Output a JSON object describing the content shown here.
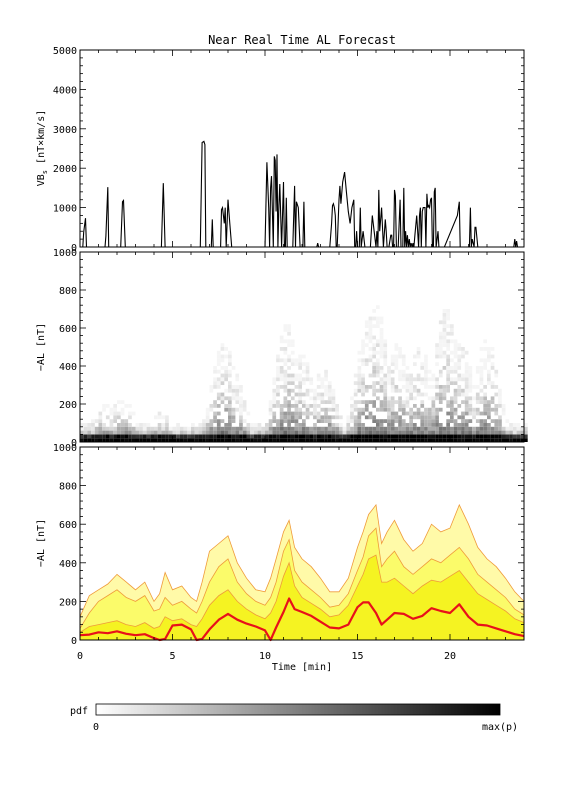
{
  "title": "Near Real Time AL Forecast",
  "xlabel": "Time [min]",
  "colorbar": {
    "label": "pdf",
    "min_label": "0",
    "max_label": "max(p)"
  },
  "chart_data": [
    {
      "type": "line",
      "panel": "solar-wind-input",
      "ylabel_main": "VB",
      "ylabel_sub": "s",
      "ylabel_units": " [nT×km/s]",
      "xlim": [
        0,
        24
      ],
      "ylim": [
        0,
        5000
      ],
      "xticks": [
        0,
        5,
        10,
        15,
        20
      ],
      "yticks": [
        0,
        1000,
        2000,
        3000,
        4000,
        5000
      ],
      "series": [
        {
          "x": [
            0,
            0.15,
            0.2,
            0.3,
            0.35,
            0.5,
            0.6,
            1.35,
            1.4,
            1.5,
            1.55,
            1.65,
            1.7,
            2.2,
            2.3,
            2.35,
            2.45,
            2.5,
            4.4,
            4.5,
            4.6,
            4.7,
            6.5,
            6.6,
            6.7,
            6.75,
            6.8,
            6.9,
            7.1,
            7.15,
            7.2,
            7.3,
            7.6,
            7.65,
            7.7,
            7.8,
            7.85,
            7.9,
            8.0,
            8.1,
            8.2,
            8.3,
            10.0,
            10.1,
            10.2,
            10.25,
            10.3,
            10.35,
            10.45,
            10.5,
            10.55,
            10.6,
            10.65,
            10.7,
            10.75,
            10.8,
            10.9,
            11.0,
            11.05,
            11.1,
            11.15,
            11.2,
            11.3,
            11.5,
            11.6,
            11.65,
            11.7,
            11.8,
            11.9,
            12.0,
            12.05,
            12.1,
            12.15,
            12.2,
            12.3,
            12.8,
            12.85,
            12.9,
            13.0,
            13.05,
            13.1,
            13.5,
            13.6,
            13.65,
            13.7,
            13.75,
            13.8,
            13.85,
            13.9,
            14.0,
            14.05,
            14.1,
            14.2,
            14.3,
            14.4,
            14.5,
            14.6,
            14.7,
            14.8,
            14.85,
            14.9,
            14.95,
            15.0,
            15.05,
            15.1,
            15.15,
            15.2,
            15.3,
            15.4,
            15.5,
            15.6,
            15.7,
            15.8,
            16.0,
            16.05,
            16.1,
            16.15,
            16.2,
            16.3,
            16.4,
            16.5,
            16.55,
            16.6,
            16.7,
            16.8,
            16.85,
            16.9,
            16.95,
            17.0,
            17.05,
            17.1,
            17.2,
            17.3,
            17.35,
            17.4,
            17.45,
            17.5,
            17.55,
            17.6,
            17.65,
            17.7,
            17.75,
            17.8,
            17.85,
            17.9,
            17.95,
            18.0,
            18.05,
            18.1,
            18.2,
            18.3,
            18.35,
            18.4,
            18.45,
            18.5,
            18.55,
            18.6,
            18.65,
            18.7,
            18.75,
            18.8,
            18.85,
            18.9,
            18.95,
            19.0,
            19.05,
            19.1,
            19.15,
            19.2,
            19.25,
            19.3,
            19.35,
            19.4,
            19.45,
            19.5,
            19.6,
            19.7,
            20.4,
            20.5,
            20.55,
            20.6,
            20.7,
            21.0,
            21.05,
            21.1,
            21.15,
            21.2,
            21.3,
            21.35,
            21.4,
            21.5,
            21.7,
            21.75,
            21.8,
            23.2,
            23.3,
            23.35,
            23.4,
            23.45,
            23.5,
            23.55,
            23.6,
            23.65,
            23.7,
            24
          ],
          "y": [
            0,
            0,
            380,
            730,
            0,
            0,
            0,
            0,
            280,
            1520,
            0,
            0,
            0,
            0,
            1150,
            1180,
            0,
            0,
            0,
            1620,
            0,
            0,
            0,
            2650,
            2680,
            2600,
            0,
            0,
            0,
            700,
            0,
            0,
            0,
            950,
            1000,
            600,
            1000,
            0,
            1200,
            600,
            0,
            0,
            0,
            2150,
            1000,
            0,
            1500,
            1800,
            0,
            2300,
            2200,
            900,
            2350,
            0,
            1050,
            1600,
            0,
            1650,
            0,
            0,
            1250,
            0,
            0,
            0,
            1550,
            0,
            1150,
            1000,
            0,
            0,
            0,
            1150,
            0,
            0,
            0,
            0,
            100,
            0,
            0,
            0,
            0,
            0,
            600,
            1050,
            1100,
            1000,
            800,
            0,
            0,
            1200,
            1550,
            1100,
            1650,
            1900,
            1400,
            900,
            600,
            1000,
            1200,
            0,
            0,
            400,
            0,
            0,
            0,
            1000,
            0,
            400,
            0,
            0,
            0,
            0,
            800,
            0,
            400,
            0,
            1450,
            400,
            1000,
            0,
            700,
            400,
            0,
            0,
            300,
            300,
            0,
            0,
            1450,
            1300,
            0,
            0,
            1200,
            0,
            0,
            0,
            1500,
            0,
            400,
            0,
            300,
            0,
            200,
            0,
            100,
            0,
            100,
            0,
            300,
            800,
            0,
            800,
            1000,
            0,
            900,
            1000,
            1000,
            1000,
            0,
            1350,
            1000,
            1050,
            1000,
            1200,
            1250,
            0,
            0,
            1400,
            1500,
            0,
            200,
            400,
            0,
            0,
            0,
            0,
            0,
            800,
            1150,
            0,
            0,
            0,
            0,
            0,
            1000,
            0,
            200,
            0,
            500,
            500,
            0,
            0,
            0,
            0,
            0,
            0,
            0,
            0,
            0,
            200,
            0,
            150,
            0,
            0,
            0
          ]
        }
      ]
    },
    {
      "type": "heatmap",
      "panel": "al-probability-density",
      "ylabel": "−AL [nT]",
      "xlim": [
        0,
        24
      ],
      "ylim": [
        0,
        1000
      ],
      "xticks": [
        0,
        5,
        10,
        15,
        20
      ],
      "yticks": [
        0,
        200,
        400,
        600,
        800,
        1000
      ],
      "colormap": "white-to-black (0 to max(p))",
      "note": "Probability density of -AL vs time; density concentrated below ~100 nT with plumes reaching ~400-700 nT near 8, 11, 15.5 and 19.5 min."
    },
    {
      "type": "area",
      "panel": "al-forecast-bands",
      "ylabel": "−AL [nT]",
      "xlim": [
        0,
        24
      ],
      "ylim": [
        0,
        1000
      ],
      "xticks": [
        0,
        5,
        10,
        15,
        20
      ],
      "yticks": [
        0,
        200,
        400,
        600,
        800,
        1000
      ],
      "x": [
        0,
        0.5,
        1,
        1.5,
        2,
        2.5,
        3,
        3.5,
        4,
        4.3,
        4.6,
        5,
        5.5,
        6,
        6.3,
        6.6,
        7,
        7.5,
        8,
        8.5,
        9,
        9.5,
        10,
        10.3,
        10.6,
        11,
        11.3,
        11.6,
        12,
        12.5,
        13,
        13.5,
        14,
        14.5,
        15,
        15.3,
        15.6,
        16,
        16.3,
        16.6,
        17,
        17.5,
        18,
        18.5,
        19,
        19.5,
        20,
        20.5,
        21,
        21.5,
        22,
        22.5,
        23,
        23.5,
        24
      ],
      "series": [
        {
          "name": "upper",
          "values": [
            120,
            230,
            260,
            290,
            340,
            300,
            260,
            300,
            200,
            240,
            350,
            260,
            280,
            220,
            200,
            300,
            460,
            500,
            540,
            400,
            320,
            260,
            250,
            320,
            420,
            560,
            620,
            480,
            420,
            380,
            320,
            250,
            250,
            320,
            480,
            560,
            650,
            700,
            500,
            560,
            620,
            520,
            460,
            500,
            600,
            560,
            580,
            700,
            600,
            480,
            420,
            380,
            320,
            250,
            200
          ]
        },
        {
          "name": "outer",
          "values": [
            60,
            140,
            200,
            230,
            260,
            220,
            200,
            230,
            150,
            160,
            220,
            180,
            200,
            160,
            140,
            200,
            300,
            380,
            420,
            300,
            240,
            200,
            180,
            220,
            300,
            460,
            520,
            360,
            300,
            260,
            220,
            170,
            180,
            240,
            360,
            430,
            540,
            580,
            380,
            420,
            460,
            380,
            340,
            380,
            420,
            400,
            440,
            480,
            420,
            340,
            300,
            260,
            220,
            160,
            130
          ]
        },
        {
          "name": "inner",
          "values": [
            40,
            70,
            80,
            90,
            100,
            80,
            70,
            90,
            60,
            70,
            120,
            100,
            110,
            80,
            70,
            110,
            180,
            230,
            260,
            200,
            160,
            130,
            110,
            140,
            200,
            330,
            400,
            280,
            220,
            190,
            160,
            120,
            130,
            180,
            280,
            340,
            420,
            440,
            300,
            300,
            320,
            280,
            240,
            280,
            310,
            300,
            330,
            360,
            300,
            240,
            210,
            180,
            150,
            110,
            90
          ]
        },
        {
          "name": "median",
          "values": [
            25,
            28,
            40,
            35,
            45,
            32,
            25,
            30,
            10,
            0,
            5,
            75,
            80,
            55,
            0,
            5,
            55,
            105,
            135,
            105,
            85,
            70,
            50,
            0,
            65,
            145,
            215,
            160,
            145,
            125,
            95,
            65,
            60,
            80,
            170,
            195,
            195,
            140,
            80,
            105,
            140,
            135,
            110,
            125,
            165,
            150,
            140,
            185,
            120,
            80,
            75,
            60,
            45,
            30,
            20
          ]
        }
      ],
      "colors": {
        "upper": "#fffaa8",
        "outer": "#fbfb6a",
        "inner": "#f5f322",
        "edge": "#ef9a3a",
        "median": "#e8101a"
      }
    }
  ]
}
